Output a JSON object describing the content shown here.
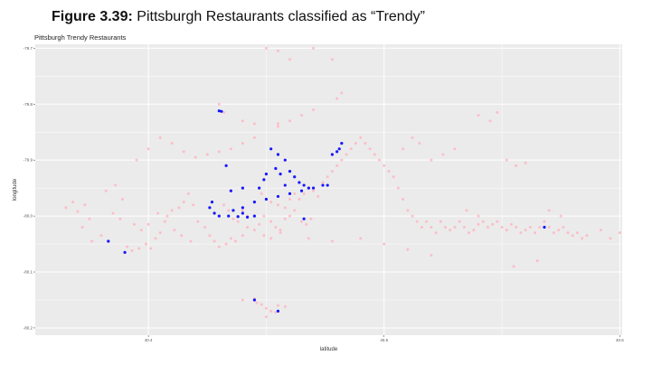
{
  "figure": {
    "label": "Figure 3.39:",
    "caption": "Pittsburgh Restaurants classified as “Trendy”"
  },
  "chart_data": {
    "type": "scatter",
    "title": "Pittsburgh Trendy Restaurants",
    "xlabel": "latitude",
    "ylabel": "longitude",
    "xlim": [
      40.352,
      40.601
    ],
    "ylim": [
      -80.213,
      -79.693
    ],
    "x_ticks": [
      40.4,
      40.5,
      40.6
    ],
    "x_tick_labels": [
      "40.4",
      "40.5",
      "40.6"
    ],
    "y_ticks": [
      -79.7,
      -79.8,
      -79.9,
      -80.0,
      -80.1,
      -80.2
    ],
    "y_tick_labels": [
      "-79.7",
      "-79.8",
      "-79.9",
      "-80.0",
      "-80.1",
      "-80.2"
    ],
    "grid": true,
    "panel_background": "#ebebeb",
    "grid_color": "#ffffff",
    "series": [
      {
        "color": "#ffb6c1",
        "points": [
          [
            40.365,
            -79.985
          ],
          [
            40.368,
            -79.975
          ],
          [
            40.37,
            -79.992
          ],
          [
            40.373,
            -79.98
          ],
          [
            40.375,
            -80.005
          ],
          [
            40.372,
            -80.02
          ],
          [
            40.376,
            -80.045
          ],
          [
            40.38,
            -80.035
          ],
          [
            40.382,
            -79.955
          ],
          [
            40.386,
            -79.945
          ],
          [
            40.389,
            -79.97
          ],
          [
            40.391,
            -80.055
          ],
          [
            40.393,
            -80.062
          ],
          [
            40.396,
            -80.058
          ],
          [
            40.399,
            -80.05
          ],
          [
            40.401,
            -80.058
          ],
          [
            40.403,
            -80.04
          ],
          [
            40.405,
            -80.03
          ],
          [
            40.408,
            -80.0
          ],
          [
            40.41,
            -79.99
          ],
          [
            40.413,
            -79.985
          ],
          [
            40.415,
            -79.975
          ],
          [
            40.417,
            -79.96
          ],
          [
            40.419,
            -79.98
          ],
          [
            40.421,
            -80.01
          ],
          [
            40.424,
            -80.02
          ],
          [
            40.426,
            -80.035
          ],
          [
            40.428,
            -80.045
          ],
          [
            40.43,
            -80.055
          ],
          [
            40.433,
            -80.05
          ],
          [
            40.435,
            -80.04
          ],
          [
            40.437,
            -80.045
          ],
          [
            40.44,
            -80.035
          ],
          [
            40.442,
            -80.02
          ],
          [
            40.445,
            -80.025
          ],
          [
            40.447,
            -80.015
          ],
          [
            40.449,
            -80.0
          ],
          [
            40.452,
            -80.01
          ],
          [
            40.454,
            -80.02
          ],
          [
            40.456,
            -80.025
          ],
          [
            40.458,
            -80.005
          ],
          [
            40.46,
            -80.0
          ],
          [
            40.462,
            -79.99
          ],
          [
            40.464,
            -79.97
          ],
          [
            40.466,
            -79.96
          ],
          [
            40.468,
            -79.95
          ],
          [
            40.47,
            -79.955
          ],
          [
            40.472,
            -79.965
          ],
          [
            40.474,
            -79.94
          ],
          [
            40.476,
            -79.93
          ],
          [
            40.478,
            -79.92
          ],
          [
            40.48,
            -79.91
          ],
          [
            40.482,
            -79.9
          ],
          [
            40.484,
            -79.89
          ],
          [
            40.486,
            -79.88
          ],
          [
            40.488,
            -79.87
          ],
          [
            40.49,
            -79.86
          ],
          [
            40.492,
            -79.87
          ],
          [
            40.494,
            -79.88
          ],
          [
            40.496,
            -79.89
          ],
          [
            40.498,
            -79.9
          ],
          [
            40.5,
            -79.91
          ],
          [
            40.502,
            -79.92
          ],
          [
            40.504,
            -79.93
          ],
          [
            40.506,
            -79.95
          ],
          [
            40.508,
            -79.97
          ],
          [
            40.51,
            -79.99
          ],
          [
            40.512,
            -80.0
          ],
          [
            40.514,
            -80.01
          ],
          [
            40.516,
            -80.02
          ],
          [
            40.518,
            -80.01
          ],
          [
            40.52,
            -80.02
          ],
          [
            40.522,
            -80.03
          ],
          [
            40.524,
            -80.01
          ],
          [
            40.526,
            -80.02
          ],
          [
            40.528,
            -80.025
          ],
          [
            40.53,
            -80.02
          ],
          [
            40.532,
            -80.01
          ],
          [
            40.534,
            -80.02
          ],
          [
            40.536,
            -80.03
          ],
          [
            40.538,
            -80.025
          ],
          [
            40.54,
            -80.015
          ],
          [
            40.542,
            -80.01
          ],
          [
            40.544,
            -80.02
          ],
          [
            40.546,
            -80.015
          ],
          [
            40.548,
            -80.01
          ],
          [
            40.55,
            -80.02
          ],
          [
            40.552,
            -80.025
          ],
          [
            40.554,
            -80.015
          ],
          [
            40.556,
            -80.02
          ],
          [
            40.558,
            -80.03
          ],
          [
            40.56,
            -80.025
          ],
          [
            40.562,
            -80.02
          ],
          [
            40.564,
            -80.03
          ],
          [
            40.566,
            -80.02
          ],
          [
            40.568,
            -80.01
          ],
          [
            40.57,
            -80.02
          ],
          [
            40.572,
            -80.03
          ],
          [
            40.574,
            -80.025
          ],
          [
            40.576,
            -80.02
          ],
          [
            40.578,
            -80.03
          ],
          [
            40.58,
            -80.035
          ],
          [
            40.582,
            -80.03
          ],
          [
            40.584,
            -80.04
          ],
          [
            40.586,
            -80.035
          ],
          [
            40.54,
            -79.82
          ],
          [
            40.545,
            -79.83
          ],
          [
            40.548,
            -79.815
          ],
          [
            40.552,
            -79.9
          ],
          [
            40.556,
            -79.91
          ],
          [
            40.56,
            -79.905
          ],
          [
            40.57,
            -79.99
          ],
          [
            40.575,
            -80.0
          ],
          [
            40.555,
            -80.09
          ],
          [
            40.565,
            -80.08
          ],
          [
            40.52,
            -80.07
          ],
          [
            40.51,
            -80.06
          ],
          [
            40.5,
            -80.05
          ],
          [
            40.49,
            -80.04
          ],
          [
            40.478,
            -80.045
          ],
          [
            40.468,
            -80.04
          ],
          [
            40.455,
            -80.16
          ],
          [
            40.45,
            -80.165
          ],
          [
            40.452,
            -80.17
          ],
          [
            40.448,
            -80.158
          ],
          [
            40.446,
            -80.155
          ],
          [
            40.44,
            -80.15
          ],
          [
            40.445,
            -80.148
          ],
          [
            40.458,
            -80.162
          ],
          [
            40.454,
            -80.172
          ],
          [
            40.45,
            -80.18
          ],
          [
            40.495,
            -80.24
          ],
          [
            40.497,
            -80.25
          ],
          [
            40.46,
            -79.72
          ],
          [
            40.45,
            -79.7
          ],
          [
            40.455,
            -79.705
          ],
          [
            40.47,
            -79.7
          ],
          [
            40.478,
            -79.72
          ],
          [
            40.482,
            -79.78
          ],
          [
            40.48,
            -79.79
          ],
          [
            40.47,
            -79.81
          ],
          [
            40.465,
            -79.82
          ],
          [
            40.46,
            -79.83
          ],
          [
            40.455,
            -79.84
          ],
          [
            40.445,
            -79.86
          ],
          [
            40.44,
            -79.87
          ],
          [
            40.435,
            -79.88
          ],
          [
            40.43,
            -79.885
          ],
          [
            40.425,
            -79.89
          ],
          [
            40.42,
            -79.895
          ],
          [
            40.415,
            -79.885
          ],
          [
            40.41,
            -79.87
          ],
          [
            40.405,
            -79.86
          ],
          [
            40.4,
            -79.88
          ],
          [
            40.395,
            -79.9
          ],
          [
            40.43,
            -79.8
          ],
          [
            40.432,
            -79.815
          ],
          [
            40.44,
            -79.83
          ],
          [
            40.445,
            -79.835
          ],
          [
            40.455,
            -79.835
          ],
          [
            40.448,
            -79.96
          ],
          [
            40.45,
            -79.97
          ],
          [
            40.452,
            -79.975
          ],
          [
            40.455,
            -79.98
          ],
          [
            40.458,
            -79.985
          ],
          [
            40.46,
            -79.97
          ],
          [
            40.462,
            -79.96
          ],
          [
            40.44,
            -79.99
          ],
          [
            40.442,
            -80.0
          ],
          [
            40.438,
            -80.01
          ],
          [
            40.436,
            -80.005
          ],
          [
            40.434,
            -79.99
          ],
          [
            40.432,
            -79.98
          ],
          [
            40.465,
            -80.01
          ],
          [
            40.467,
            -80.015
          ],
          [
            40.469,
            -80.005
          ],
          [
            40.456,
            -80.03
          ],
          [
            40.452,
            -80.04
          ],
          [
            40.449,
            -80.035
          ],
          [
            40.52,
            -79.9
          ],
          [
            40.525,
            -79.89
          ],
          [
            40.53,
            -79.88
          ],
          [
            40.515,
            -79.87
          ],
          [
            40.512,
            -79.86
          ],
          [
            40.508,
            -79.88
          ],
          [
            40.54,
            -80.0
          ],
          [
            40.535,
            -79.99
          ],
          [
            40.6,
            -80.03
          ],
          [
            40.596,
            -80.04
          ],
          [
            40.592,
            -80.025
          ],
          [
            40.385,
            -79.995
          ],
          [
            40.388,
            -80.005
          ],
          [
            40.394,
            -80.015
          ],
          [
            40.397,
            -80.025
          ],
          [
            40.4,
            -80.015
          ],
          [
            40.404,
            -79.995
          ],
          [
            40.407,
            -80.01
          ],
          [
            40.411,
            -80.025
          ],
          [
            40.414,
            -80.035
          ],
          [
            40.418,
            -80.045
          ]
        ]
      },
      {
        "color": "#0000ff",
        "points": [
          [
            40.43,
            -79.812
          ],
          [
            40.431,
            -79.813
          ],
          [
            40.433,
            -79.91
          ],
          [
            40.482,
            -79.87
          ],
          [
            40.481,
            -79.88
          ],
          [
            40.48,
            -79.885
          ],
          [
            40.478,
            -79.89
          ],
          [
            40.47,
            -79.95
          ],
          [
            40.465,
            -79.955
          ],
          [
            40.46,
            -79.96
          ],
          [
            40.455,
            -79.965
          ],
          [
            40.45,
            -79.97
          ],
          [
            40.445,
            -79.975
          ],
          [
            40.44,
            -79.985
          ],
          [
            40.436,
            -79.99
          ],
          [
            40.44,
            -79.995
          ],
          [
            40.445,
            -80.0
          ],
          [
            40.442,
            -80.002
          ],
          [
            40.438,
            -80.001
          ],
          [
            40.434,
            -80.0
          ],
          [
            40.426,
            -79.985
          ],
          [
            40.428,
            -79.995
          ],
          [
            40.43,
            -80.0
          ],
          [
            40.427,
            -79.975
          ],
          [
            40.452,
            -79.88
          ],
          [
            40.455,
            -79.89
          ],
          [
            40.458,
            -79.9
          ],
          [
            40.46,
            -79.92
          ],
          [
            40.462,
            -79.93
          ],
          [
            40.464,
            -79.94
          ],
          [
            40.466,
            -79.945
          ],
          [
            40.468,
            -79.95
          ],
          [
            40.474,
            -79.945
          ],
          [
            40.476,
            -79.945
          ],
          [
            40.458,
            -79.945
          ],
          [
            40.456,
            -79.925
          ],
          [
            40.454,
            -79.915
          ],
          [
            40.45,
            -79.925
          ],
          [
            40.449,
            -79.935
          ],
          [
            40.447,
            -79.95
          ],
          [
            40.435,
            -79.955
          ],
          [
            40.44,
            -79.95
          ],
          [
            40.455,
            -80.17
          ],
          [
            40.445,
            -80.15
          ],
          [
            40.383,
            -80.045
          ],
          [
            40.39,
            -80.065
          ],
          [
            40.568,
            -80.02
          ],
          [
            40.466,
            -80.005
          ]
        ]
      }
    ]
  }
}
